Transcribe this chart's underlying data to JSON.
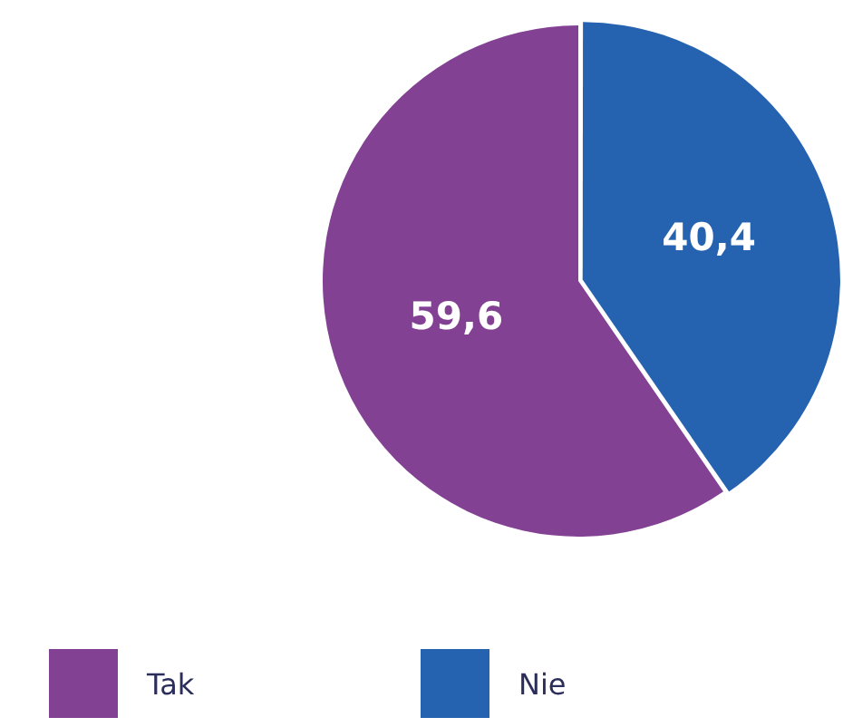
{
  "chart_data": {
    "type": "pie",
    "categories": [
      "Tak",
      "Nie"
    ],
    "values": [
      59.6,
      40.4
    ],
    "colors": [
      "#834193",
      "#2563b0"
    ],
    "value_labels": [
      "59,6",
      "40,4"
    ],
    "legend": "bottom left"
  }
}
